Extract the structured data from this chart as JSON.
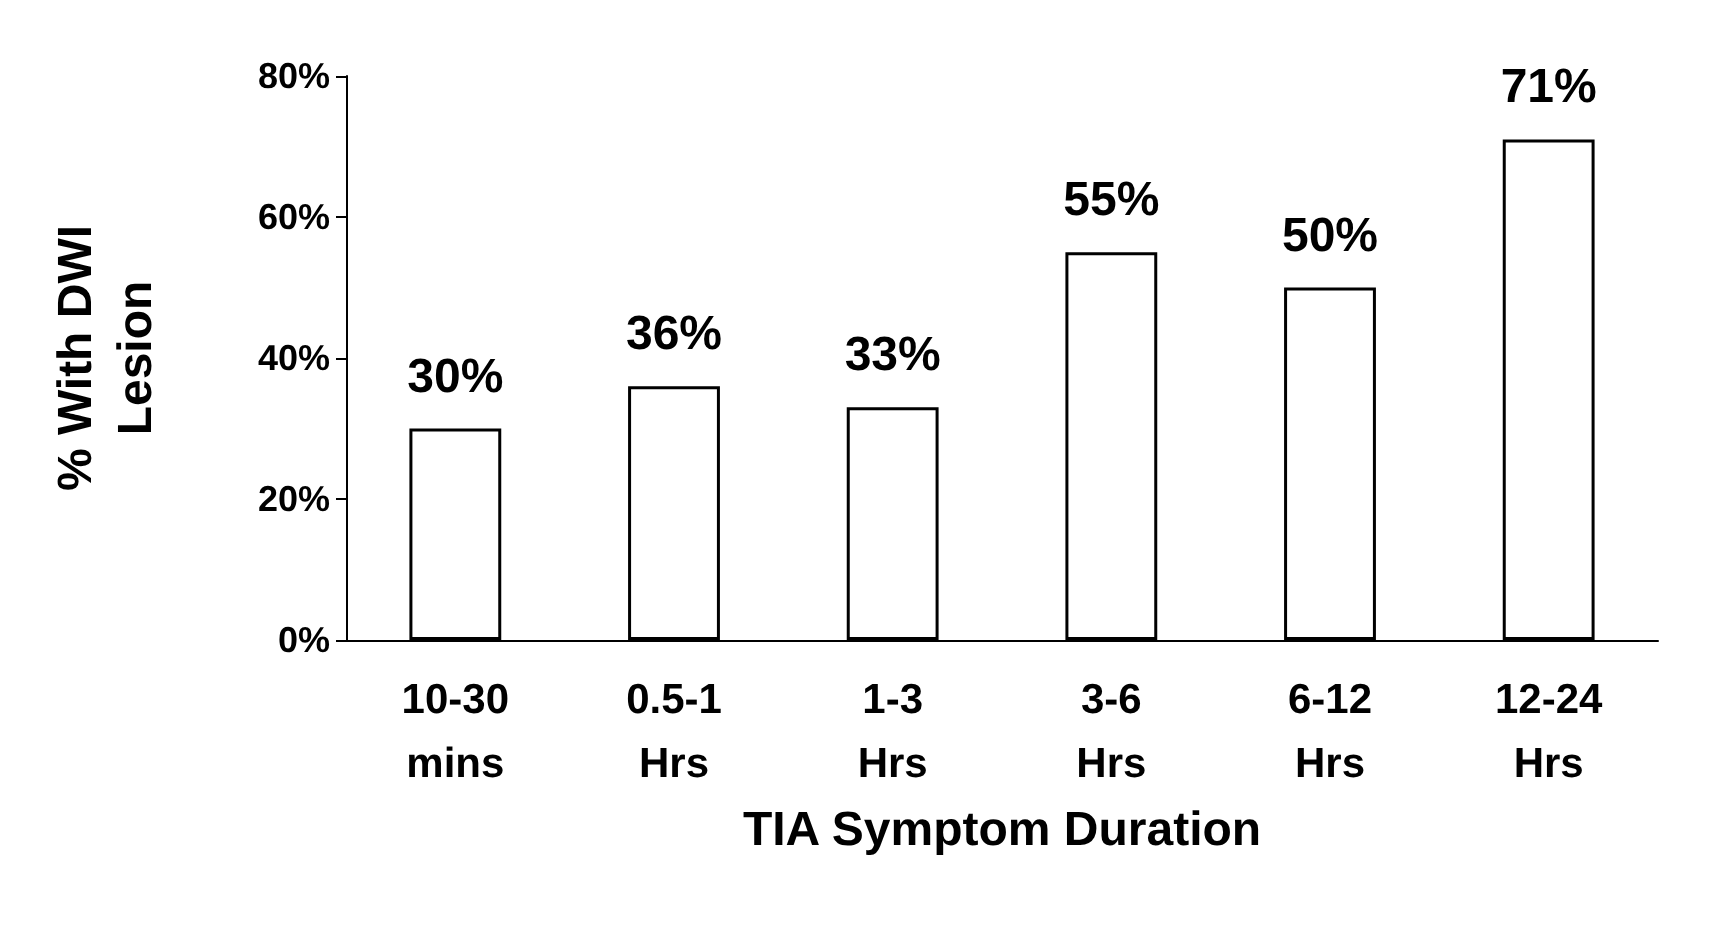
{
  "chart_data": {
    "type": "bar",
    "xlabel": "TIA Symptom Duration",
    "ylabel": "% With DWI\nLesion",
    "categories": [
      "10-30\nmins",
      "0.5-1\nHrs",
      "1-3\nHrs",
      "3-6\nHrs",
      "6-12\nHrs",
      "12-24\nHrs"
    ],
    "values": [
      30,
      36,
      33,
      55,
      50,
      71
    ],
    "value_labels": [
      "30%",
      "36%",
      "33%",
      "55%",
      "50%",
      "71%"
    ],
    "color": "#ffffff",
    "ylim": [
      0,
      80
    ],
    "yticks": [
      {
        "value": 0,
        "label": "0%"
      },
      {
        "value": 20,
        "label": "20%"
      },
      {
        "value": 40,
        "label": "40%"
      },
      {
        "value": 60,
        "label": "60%"
      },
      {
        "value": 80,
        "label": "80%"
      }
    ],
    "grid": false
  }
}
